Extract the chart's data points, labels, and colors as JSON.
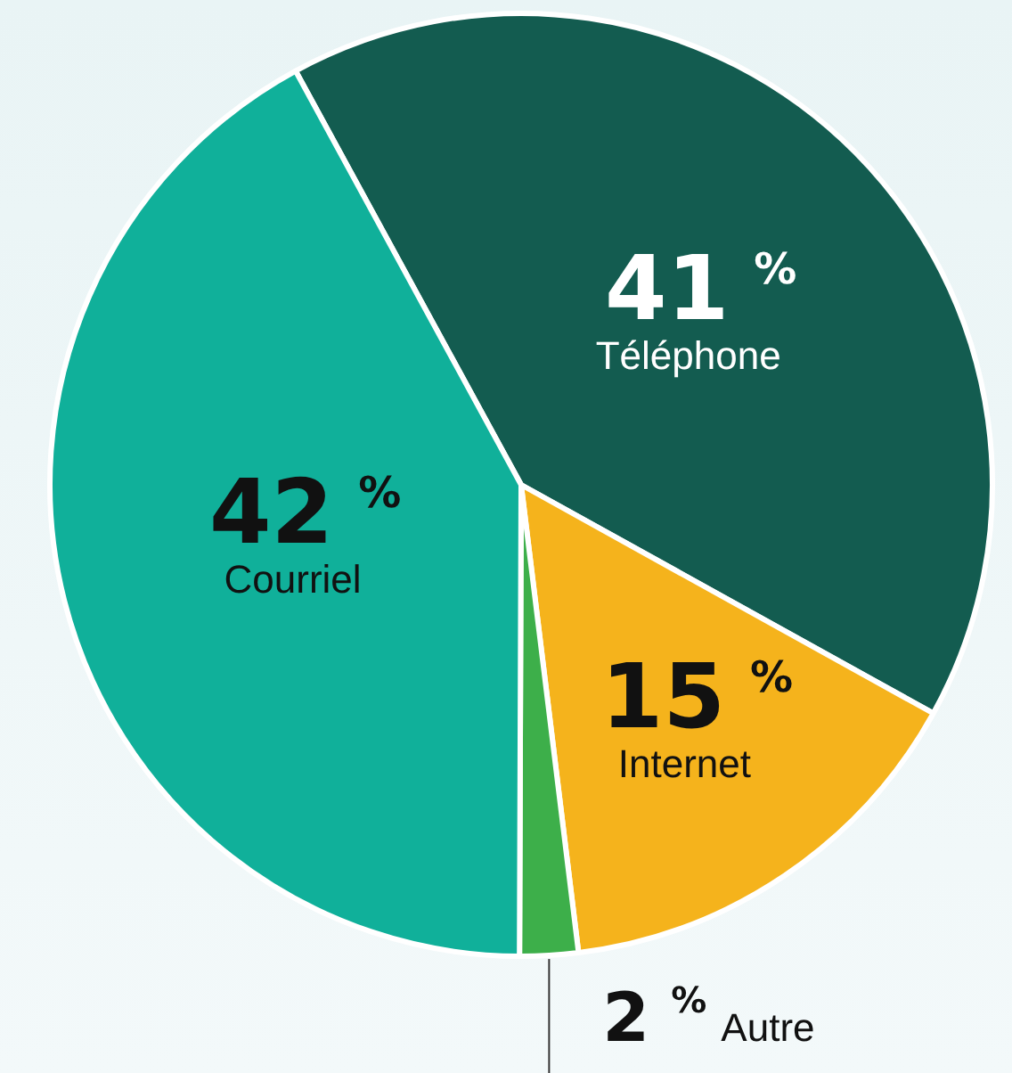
{
  "chart_data": {
    "type": "pie",
    "categories": [
      "Téléphone",
      "Internet",
      "Autre",
      "Courriel"
    ],
    "values": [
      41,
      15,
      2,
      42
    ],
    "colors": [
      "#135c50",
      "#f5b31c",
      "#3daf4a",
      "#10b09a"
    ],
    "value_labels": [
      "41 %",
      "15 %",
      "2 %",
      "42 %"
    ],
    "legend": false
  }
}
